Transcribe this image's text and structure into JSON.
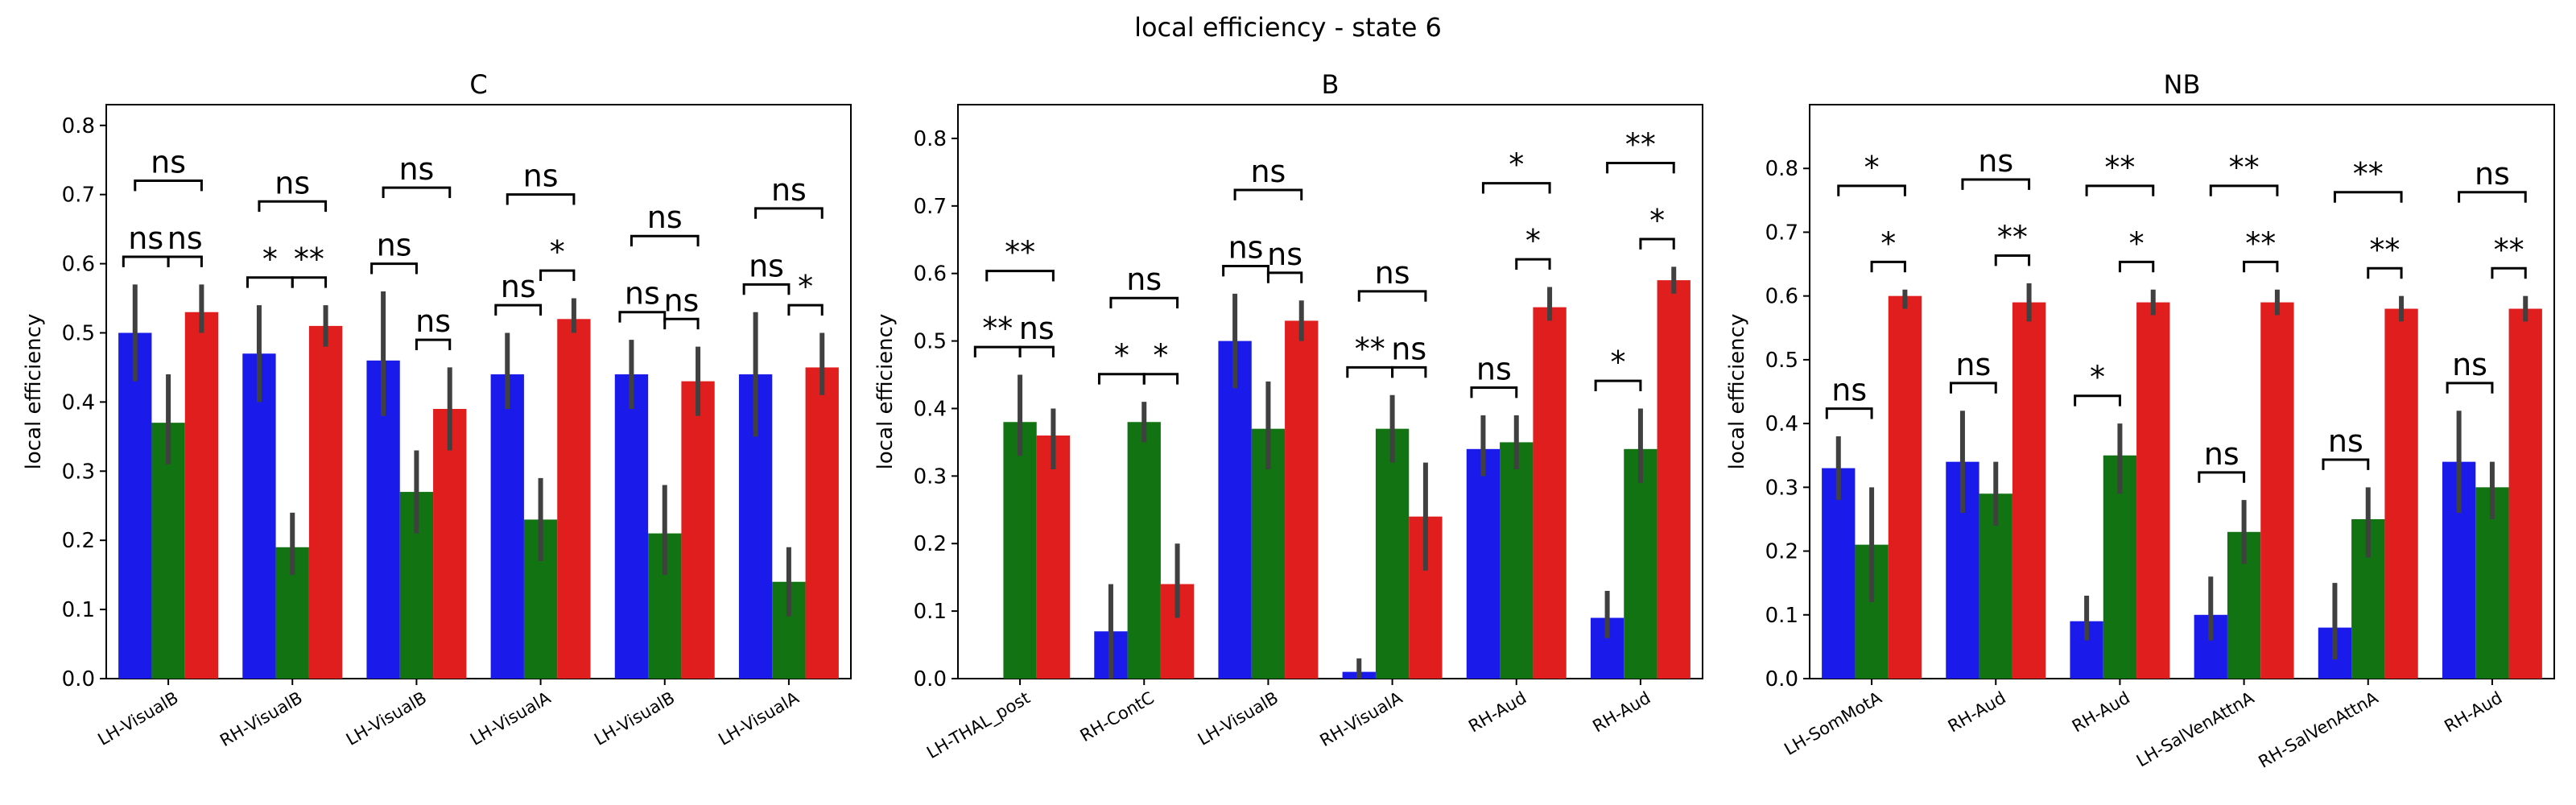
{
  "figure": {
    "suptitle": "local efficiency - state 6"
  },
  "colors": {
    "group1": "#1a1aeb",
    "group2": "#117311",
    "group3": "#e01e1e",
    "error_bar": "#404040"
  },
  "chart_data": [
    {
      "type": "bar",
      "title": "C",
      "ylabel": "local efficiency",
      "ylim": [
        0,
        0.83
      ],
      "yticks": [
        "0.0",
        "0.1",
        "0.2",
        "0.3",
        "0.4",
        "0.5",
        "0.6",
        "0.7",
        "0.8"
      ],
      "categories": [
        "LH-VisualB",
        "RH-VisualB",
        "LH-VisualB",
        "LH-VisualA",
        "LH-VisualB",
        "LH-VisualA"
      ],
      "series": [
        {
          "values": [
            0.5,
            0.47,
            0.46,
            0.44,
            0.44,
            0.44
          ],
          "err_low": [
            0.43,
            0.4,
            0.38,
            0.39,
            0.39,
            0.35
          ],
          "err_high": [
            0.57,
            0.54,
            0.56,
            0.5,
            0.49,
            0.53
          ]
        },
        {
          "values": [
            0.37,
            0.19,
            0.27,
            0.23,
            0.21,
            0.14
          ],
          "err_low": [
            0.31,
            0.15,
            0.21,
            0.17,
            0.15,
            0.09
          ],
          "err_high": [
            0.44,
            0.24,
            0.33,
            0.29,
            0.28,
            0.19
          ]
        },
        {
          "values": [
            0.53,
            0.51,
            0.39,
            0.52,
            0.43,
            0.45
          ],
          "err_low": [
            0.5,
            0.48,
            0.33,
            0.5,
            0.38,
            0.41
          ],
          "err_high": [
            0.57,
            0.54,
            0.45,
            0.55,
            0.48,
            0.5
          ]
        }
      ],
      "significance": [
        [
          "ns",
          "ns",
          "ns"
        ],
        [
          "*",
          "**",
          "ns"
        ],
        [
          "ns",
          "ns",
          "ns"
        ],
        [
          "ns",
          "*",
          "ns"
        ],
        [
          "ns",
          "ns",
          "ns"
        ],
        [
          "ns",
          "*",
          "ns"
        ]
      ]
    },
    {
      "type": "bar",
      "title": "B",
      "ylabel": "local efficiency",
      "ylim": [
        0,
        0.85
      ],
      "yticks": [
        "0.0",
        "0.1",
        "0.2",
        "0.3",
        "0.4",
        "0.5",
        "0.6",
        "0.7",
        "0.8"
      ],
      "categories": [
        "LH-THAL_post",
        "RH-ContC",
        "LH-VisualB",
        "RH-VisualA",
        "RH-Aud",
        "RH-Aud"
      ],
      "series": [
        {
          "values": [
            0.0,
            0.07,
            0.5,
            0.01,
            0.34,
            0.09
          ],
          "err_low": [
            0.0,
            0.0,
            0.43,
            0.0,
            0.3,
            0.06
          ],
          "err_high": [
            0.0,
            0.14,
            0.57,
            0.03,
            0.39,
            0.13
          ]
        },
        {
          "values": [
            0.38,
            0.38,
            0.37,
            0.37,
            0.35,
            0.34
          ],
          "err_low": [
            0.33,
            0.35,
            0.31,
            0.32,
            0.31,
            0.29
          ],
          "err_high": [
            0.45,
            0.41,
            0.44,
            0.42,
            0.39,
            0.4
          ]
        },
        {
          "values": [
            0.36,
            0.14,
            0.53,
            0.24,
            0.55,
            0.59
          ],
          "err_low": [
            0.31,
            0.09,
            0.5,
            0.16,
            0.53,
            0.57
          ],
          "err_high": [
            0.4,
            0.2,
            0.56,
            0.32,
            0.58,
            0.61
          ]
        }
      ],
      "significance": [
        [
          "**",
          "ns",
          "**"
        ],
        [
          "*",
          "*",
          "ns"
        ],
        [
          "ns",
          "ns",
          "ns"
        ],
        [
          "**",
          "ns",
          "ns"
        ],
        [
          "ns",
          "*",
          "*"
        ],
        [
          "*",
          "*",
          "**"
        ]
      ]
    },
    {
      "type": "bar",
      "title": "NB",
      "ylabel": "local efficiency",
      "ylim": [
        0,
        0.9
      ],
      "yticks": [
        "0.0",
        "0.1",
        "0.2",
        "0.3",
        "0.4",
        "0.5",
        "0.6",
        "0.7",
        "0.8"
      ],
      "categories": [
        "LH-SomMotA",
        "RH-Aud",
        "RH-Aud",
        "LH-SalVenAttnA",
        "RH-SalVenAttnA",
        "RH-Aud"
      ],
      "series": [
        {
          "values": [
            0.33,
            0.34,
            0.09,
            0.1,
            0.08,
            0.34
          ],
          "err_low": [
            0.28,
            0.26,
            0.06,
            0.06,
            0.03,
            0.26
          ],
          "err_high": [
            0.38,
            0.42,
            0.13,
            0.16,
            0.15,
            0.42
          ]
        },
        {
          "values": [
            0.21,
            0.29,
            0.35,
            0.23,
            0.25,
            0.3
          ],
          "err_low": [
            0.12,
            0.24,
            0.29,
            0.18,
            0.19,
            0.25
          ],
          "err_high": [
            0.3,
            0.34,
            0.4,
            0.28,
            0.3,
            0.34
          ]
        },
        {
          "values": [
            0.6,
            0.59,
            0.59,
            0.59,
            0.58,
            0.58
          ],
          "err_low": [
            0.58,
            0.56,
            0.57,
            0.57,
            0.56,
            0.56
          ],
          "err_high": [
            0.61,
            0.62,
            0.61,
            0.61,
            0.6,
            0.6
          ]
        }
      ],
      "significance": [
        [
          "ns",
          "*",
          "*"
        ],
        [
          "ns",
          "**",
          "ns"
        ],
        [
          "*",
          "*",
          "**"
        ],
        [
          "ns",
          "**",
          "**"
        ],
        [
          "ns",
          "**",
          "**"
        ],
        [
          "ns",
          "**",
          "ns"
        ]
      ]
    }
  ]
}
